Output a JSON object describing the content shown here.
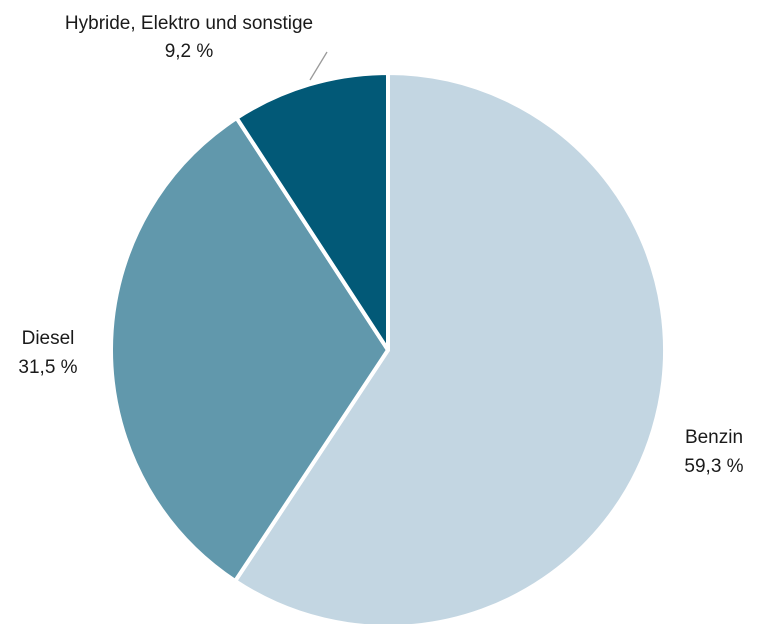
{
  "chart_data": {
    "type": "pie",
    "start_angle_deg": 0,
    "direction": "clockwise",
    "slices": [
      {
        "label": "Benzin",
        "value": 59.3,
        "value_text": "59,3 %",
        "color": "#c3d6e2"
      },
      {
        "label": "Diesel",
        "value": 31.5,
        "value_text": "31,5 %",
        "color": "#6198ac"
      },
      {
        "label": "Hybride, Elektro und sonstige",
        "value": 9.2,
        "value_text": "9,2 %",
        "color": "#025977"
      }
    ],
    "slice_border_color": "#ffffff",
    "leader_line_color": "#9a9a9a"
  }
}
